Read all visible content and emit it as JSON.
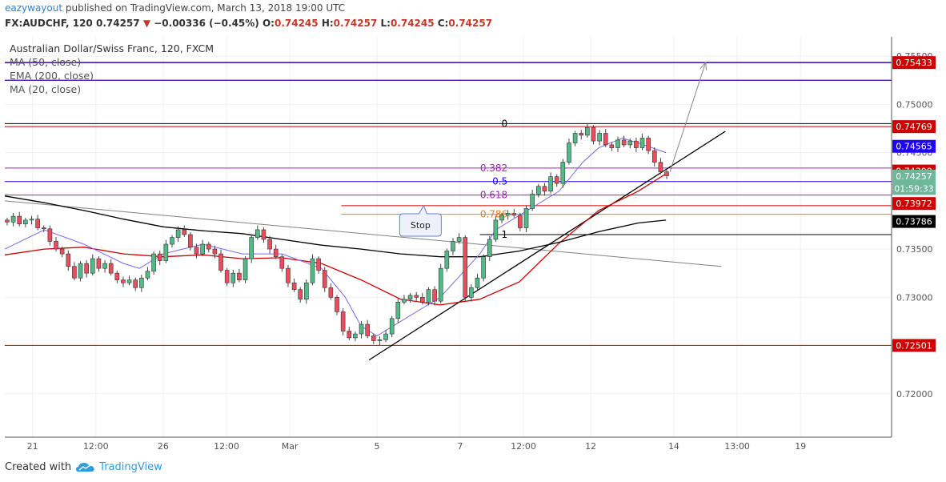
{
  "header": {
    "author": "eazywayout",
    "published": "published on TradingView.com, March 13, 2018 19:00 UTC",
    "symbol": "FX:AUDCHF, 120",
    "last": "0.74257",
    "arrow": "▼",
    "change": "−0.00336 (−0.45%)",
    "o_label": "O:",
    "o_value": "0.74245",
    "h_label": "H:",
    "h_value": "0.74257",
    "l_label": "L:",
    "l_value": "0.74245",
    "c_label": "C:",
    "c_value": "0.74257"
  },
  "legend": {
    "title": "Australian Dollar/Swiss Franc, 120, FXCM",
    "items": [
      "MA (50, close)",
      "EMA (200, close)",
      "MA (20, close)"
    ]
  },
  "footer": {
    "created_with": "Created with",
    "brand": "TradingView"
  },
  "colors": {
    "up": "#53b987",
    "down": "#eb4d5c",
    "ma50": "#000000",
    "ema200": "#cc0000",
    "ma20": "#7b68ee",
    "level_purple": "#3b00b3",
    "level_red": "#cc0000",
    "fib_violet": "#9c27b0",
    "fib_blue": "#1e00ff",
    "fib_orange": "#e67e22"
  },
  "chart_data": {
    "type": "candlestick",
    "title": "Australian Dollar/Swiss Franc, 120, FXCM",
    "y_axis": {
      "range": [
        0.7155,
        0.757
      ],
      "ticks": [
        "0.75500",
        "0.75000",
        "0.74500",
        "0.73500",
        "0.73000",
        "0.72000"
      ],
      "tick_values": [
        0.755,
        0.75,
        0.745,
        0.735,
        0.73,
        0.72
      ]
    },
    "x_axis": {
      "range": [
        0,
        112
      ],
      "ticks": [
        {
          "label": "21",
          "x": 3.5
        },
        {
          "label": "12:00",
          "x": 11.5
        },
        {
          "label": "26",
          "x": 20
        },
        {
          "label": "12:00",
          "x": 28
        },
        {
          "label": "Mar",
          "x": 36
        },
        {
          "label": "5",
          "x": 47
        },
        {
          "label": "7",
          "x": 57.5
        },
        {
          "label": "12:00",
          "x": 65.5
        },
        {
          "label": "12",
          "x": 74
        },
        {
          "label": "14",
          "x": 84.5
        },
        {
          "label": "13:00",
          "x": 92.5
        },
        {
          "label": "19",
          "x": 100.5
        }
      ]
    },
    "price_labels": [
      {
        "value": 0.75433,
        "text": "0.75433",
        "bg": "#cc0000"
      },
      {
        "value": 0.74769,
        "text": "0.74769",
        "bg": "#cc0000"
      },
      {
        "value": 0.74565,
        "text": "0.74565",
        "bg": "#1e00ff"
      },
      {
        "value": 0.74309,
        "text": "0.74309",
        "bg": "#cc0000"
      },
      {
        "value": 0.74257,
        "text": "0.74257",
        "bg": "#6fb79a"
      },
      {
        "value": 0.74128,
        "text": "01:59:33",
        "bg": "#6fb79a"
      },
      {
        "value": 0.73972,
        "text": "0.73972",
        "bg": "#cc0000"
      },
      {
        "value": 0.73786,
        "text": "0.73786",
        "bg": "#000000"
      },
      {
        "value": 0.72501,
        "text": "0.72501",
        "bg": "#cc0000"
      }
    ],
    "levels": [
      {
        "value": 0.75433,
        "color": "#3b00b3",
        "x0": 0,
        "width": 1.5
      },
      {
        "value": 0.7525,
        "color": "#3b00b3",
        "x0": 0,
        "width": 1.2
      },
      {
        "value": 0.74769,
        "color": "#cc0000",
        "x0": 0,
        "width": 1
      },
      {
        "value": 0.72501,
        "color": "#cc0000",
        "x0": 0,
        "width": 1
      }
    ],
    "fib_levels": [
      {
        "ratio": "0",
        "value": 0.748,
        "color": "#000000",
        "x0": 0,
        "label_x": 63.5
      },
      {
        "ratio": "0.382",
        "value": 0.7434,
        "color": "#9c27b0",
        "x0": 0,
        "label_x": 63.5
      },
      {
        "ratio": "0.5",
        "value": 0.742,
        "color": "#1e00ff",
        "x0": 0,
        "label_x": 63.5
      },
      {
        "ratio": "0.618",
        "value": 0.7406,
        "color": "#9c27b0",
        "x0": 0,
        "label_x": 63.5
      },
      {
        "ratio": "0.786",
        "value": 0.7386,
        "color": "#e67e22",
        "x0": 42.5,
        "label_x": 63.5
      },
      {
        "ratio": "1",
        "value": 0.7365,
        "color": "#000000",
        "x0": 60,
        "label_x": 63.5
      }
    ],
    "stop_level": {
      "value": 0.7395,
      "x0": 42.5,
      "x1": 112
    },
    "callout": {
      "text": "Stop",
      "x": 52.5,
      "y": 0.7375
    },
    "trendlines": [
      {
        "x0": 0,
        "y0": 0.74,
        "x1": 90.5,
        "y1": 0.7332,
        "color": "#808080"
      },
      {
        "x0": 46,
        "y0": 0.7235,
        "x1": 91,
        "y1": 0.7472,
        "color": "#000000"
      },
      {
        "x0": 84,
        "y0": 0.743,
        "x1": 88.5,
        "y1": 0.7543,
        "color": "#888888",
        "arrow": true
      }
    ],
    "ma50": {
      "x": [
        0,
        5,
        10,
        15,
        20,
        25,
        30,
        35,
        40,
        45,
        50,
        55,
        60,
        65,
        70,
        75,
        80,
        83.5
      ],
      "y": [
        0.7405,
        0.7398,
        0.739,
        0.7381,
        0.7373,
        0.7369,
        0.7366,
        0.736,
        0.7354,
        0.735,
        0.7345,
        0.7342,
        0.7342,
        0.7348,
        0.7357,
        0.7368,
        0.7377,
        0.738
      ]
    },
    "ema200": {
      "x": [
        0,
        5,
        10,
        15,
        20,
        25,
        30,
        35,
        40,
        45,
        50,
        55,
        60,
        65,
        70,
        75,
        80,
        83.5
      ],
      "y": [
        0.7344,
        0.735,
        0.7352,
        0.7345,
        0.7342,
        0.7344,
        0.734,
        0.7341,
        0.7335,
        0.7318,
        0.7298,
        0.7292,
        0.7298,
        0.7316,
        0.7356,
        0.739,
        0.741,
        0.7428
      ]
    },
    "ma20": {
      "x": [
        0,
        5,
        10,
        15,
        17,
        20,
        25,
        30,
        35,
        40,
        43,
        45,
        47,
        50,
        55,
        60,
        62,
        65,
        70,
        73,
        75,
        78,
        80,
        83.5
      ],
      "y": [
        0.735,
        0.737,
        0.7355,
        0.7335,
        0.733,
        0.7345,
        0.7355,
        0.7345,
        0.7345,
        0.733,
        0.73,
        0.727,
        0.726,
        0.7275,
        0.73,
        0.7345,
        0.737,
        0.7385,
        0.741,
        0.744,
        0.7455,
        0.7465,
        0.746,
        0.745
      ]
    },
    "candles": [
      [
        0.738,
        0.7378
      ],
      [
        0.7378,
        0.7384
      ],
      [
        0.7384,
        0.7376
      ],
      [
        0.7376,
        0.738
      ],
      [
        0.738,
        0.7381
      ],
      [
        0.7381,
        0.7372
      ],
      [
        0.7372,
        0.7371
      ],
      [
        0.7371,
        0.7358
      ],
      [
        0.7358,
        0.735
      ],
      [
        0.735,
        0.7345
      ],
      [
        0.7345,
        0.7332
      ],
      [
        0.7332,
        0.732
      ],
      [
        0.732,
        0.7335
      ],
      [
        0.7335,
        0.7325
      ],
      [
        0.7325,
        0.734
      ],
      [
        0.734,
        0.733
      ],
      [
        0.733,
        0.7335
      ],
      [
        0.7335,
        0.7325
      ],
      [
        0.7325,
        0.7318
      ],
      [
        0.7318,
        0.7315
      ],
      [
        0.7315,
        0.7318
      ],
      [
        0.7318,
        0.731
      ],
      [
        0.731,
        0.732
      ],
      [
        0.732,
        0.7327
      ],
      [
        0.7327,
        0.7345
      ],
      [
        0.7345,
        0.7338
      ],
      [
        0.7338,
        0.7355
      ],
      [
        0.7355,
        0.7362
      ],
      [
        0.7362,
        0.737
      ],
      [
        0.737,
        0.7365
      ],
      [
        0.7365,
        0.7352
      ],
      [
        0.7352,
        0.7345
      ],
      [
        0.7345,
        0.7355
      ],
      [
        0.7355,
        0.735
      ],
      [
        0.735,
        0.7345
      ],
      [
        0.7345,
        0.7328
      ],
      [
        0.7328,
        0.7315
      ],
      [
        0.7315,
        0.7325
      ],
      [
        0.7325,
        0.7318
      ],
      [
        0.7318,
        0.734
      ],
      [
        0.734,
        0.7362
      ],
      [
        0.7362,
        0.737
      ],
      [
        0.737,
        0.736
      ],
      [
        0.736,
        0.735
      ],
      [
        0.735,
        0.7342
      ],
      [
        0.7342,
        0.733
      ],
      [
        0.733,
        0.7315
      ],
      [
        0.7315,
        0.7308
      ],
      [
        0.7308,
        0.7298
      ],
      [
        0.7298,
        0.7315
      ],
      [
        0.7315,
        0.734
      ],
      [
        0.734,
        0.7328
      ],
      [
        0.7328,
        0.731
      ],
      [
        0.731,
        0.73
      ],
      [
        0.73,
        0.7285
      ],
      [
        0.7285,
        0.7265
      ],
      [
        0.7265,
        0.7258
      ],
      [
        0.7258,
        0.7262
      ],
      [
        0.7262,
        0.7272
      ],
      [
        0.7272,
        0.726
      ],
      [
        0.726,
        0.7255
      ],
      [
        0.7255,
        0.7256
      ],
      [
        0.7256,
        0.7262
      ],
      [
        0.7262,
        0.7278
      ],
      [
        0.7278,
        0.7295
      ],
      [
        0.7295,
        0.7298
      ],
      [
        0.7298,
        0.7302
      ],
      [
        0.7302,
        0.73
      ],
      [
        0.73,
        0.7295
      ],
      [
        0.7295,
        0.7308
      ],
      [
        0.7308,
        0.7296
      ],
      [
        0.7296,
        0.733
      ],
      [
        0.733,
        0.7348
      ],
      [
        0.7348,
        0.7358
      ],
      [
        0.7358,
        0.7362
      ],
      [
        0.7362,
        0.73
      ],
      [
        0.73,
        0.731
      ],
      [
        0.731,
        0.732
      ],
      [
        0.732,
        0.7342
      ],
      [
        0.7342,
        0.736
      ],
      [
        0.736,
        0.738
      ],
      [
        0.738,
        0.7385
      ],
      [
        0.7385,
        0.7387
      ],
      [
        0.7387,
        0.7385
      ],
      [
        0.7385,
        0.7372
      ],
      [
        0.7372,
        0.7392
      ],
      [
        0.7392,
        0.7407
      ],
      [
        0.7407,
        0.7415
      ],
      [
        0.7415,
        0.741
      ],
      [
        0.741,
        0.7425
      ],
      [
        0.7425,
        0.7418
      ],
      [
        0.7418,
        0.744
      ],
      [
        0.744,
        0.746
      ],
      [
        0.746,
        0.747
      ],
      [
        0.747,
        0.7468
      ],
      [
        0.7468,
        0.7476
      ],
      [
        0.7476,
        0.7462
      ],
      [
        0.7462,
        0.747
      ],
      [
        0.747,
        0.7458
      ],
      [
        0.7458,
        0.7455
      ],
      [
        0.7455,
        0.7463
      ],
      [
        0.7463,
        0.7458
      ],
      [
        0.7458,
        0.7462
      ],
      [
        0.7462,
        0.7455
      ],
      [
        0.7455,
        0.7465
      ],
      [
        0.7465,
        0.7452
      ],
      [
        0.7452,
        0.744
      ],
      [
        0.744,
        0.743
      ],
      [
        0.743,
        0.7426
      ]
    ]
  }
}
